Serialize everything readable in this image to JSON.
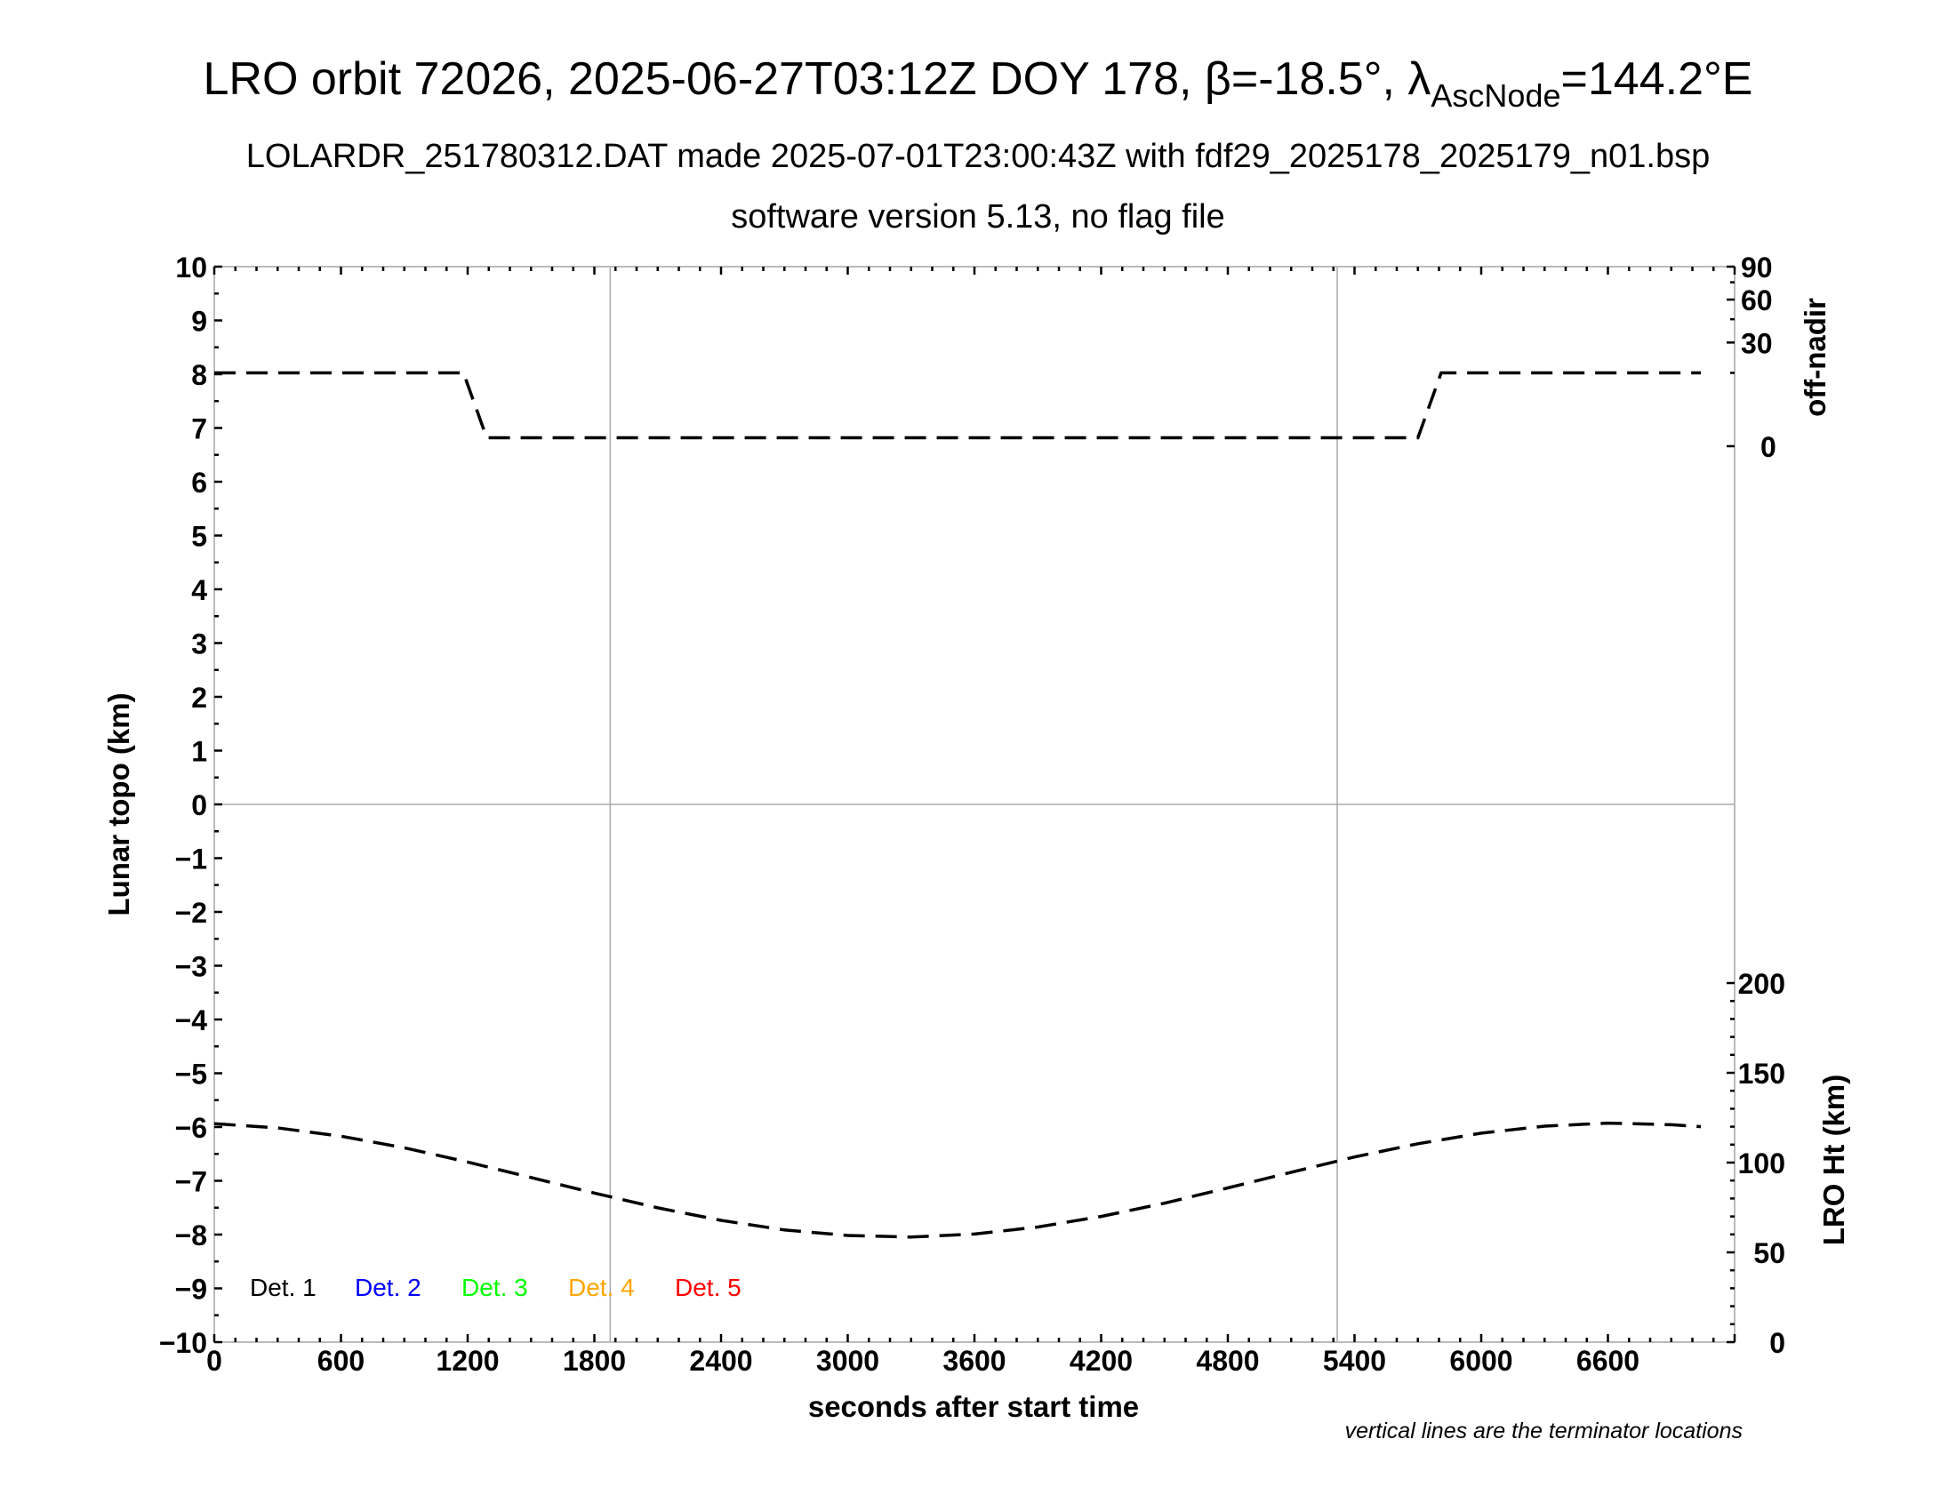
{
  "header": {
    "title_main": "LRO orbit 72026, 2025-06-27T03:12Z DOY 178, β=-18.5°, λ",
    "title_sub": "AscNode",
    "title_end": "=144.2°E",
    "subtitle": "LOLARDR_251780312.DAT made 2025-07-01T23:00:43Z with fdf29_2025178_2025179_n01.bsp",
    "subtitle2": "software version 5.13, no flag file"
  },
  "footnote": "vertical lines are the terminator locations",
  "chart_data": {
    "type": "line",
    "xlabel": "seconds after start time",
    "ylabel": "Lunar topo (km)",
    "y2label_top": "off-nadir",
    "y2label_bottom": "LRO Ht (km)",
    "xlim": [
      0,
      7200
    ],
    "ylim": [
      -10,
      10
    ],
    "x_ticks": [
      "0",
      "600",
      "1200",
      "1800",
      "2400",
      "3000",
      "3600",
      "4200",
      "4800",
      "5400",
      "6000",
      "6600"
    ],
    "y_ticks": [
      "10",
      "9",
      "8",
      "7",
      "6",
      "5",
      "4",
      "3",
      "2",
      "1",
      "0",
      "−1",
      "−2",
      "−3",
      "−4",
      "−5",
      "−6",
      "−7",
      "−8",
      "−9",
      "−10"
    ],
    "offnadir_ticks": [
      "90",
      "60",
      "30",
      "0"
    ],
    "offnadir_scale": "sqrt",
    "offnadir_lim": [
      0,
      90
    ],
    "ht_ticks": [
      "200",
      "150",
      "100",
      "50",
      "0"
    ],
    "ht_lim": [
      0,
      200
    ],
    "terminators": [
      1875,
      5318
    ],
    "legend": [
      {
        "label": "Det. 1",
        "color": "#000000"
      },
      {
        "label": "Det. 2",
        "color": "#0000ff"
      },
      {
        "label": "Det. 3",
        "color": "#00ff00"
      },
      {
        "label": "Det. 4",
        "color": "#ffa500"
      },
      {
        "label": "Det. 5",
        "color": "#ff0000"
      }
    ],
    "series": [
      {
        "axis": "off-nadir",
        "style": "dashed",
        "x": [
          0,
          1180,
          1290,
          5700,
          5810,
          7040
        ],
        "y": [
          15,
          15,
          0.2,
          0.2,
          15,
          15
        ]
      },
      {
        "axis": "LRO Ht (km)",
        "style": "dashed",
        "x": [
          0,
          300,
          600,
          900,
          1200,
          1500,
          1800,
          2100,
          2400,
          2700,
          3000,
          3300,
          3600,
          3900,
          4200,
          4500,
          4800,
          5100,
          5400,
          5700,
          6000,
          6300,
          6600,
          6900,
          7040
        ],
        "y": [
          121.7,
          119.3,
          114.7,
          108.2,
          100.3,
          91.7,
          83.0,
          74.8,
          67.8,
          62.5,
          59.4,
          58.5,
          60.2,
          64.1,
          70.0,
          77.4,
          85.9,
          94.6,
          103.1,
          110.5,
          116.4,
          120.3,
          122.0,
          121.1,
          120.0
        ]
      }
    ]
  }
}
